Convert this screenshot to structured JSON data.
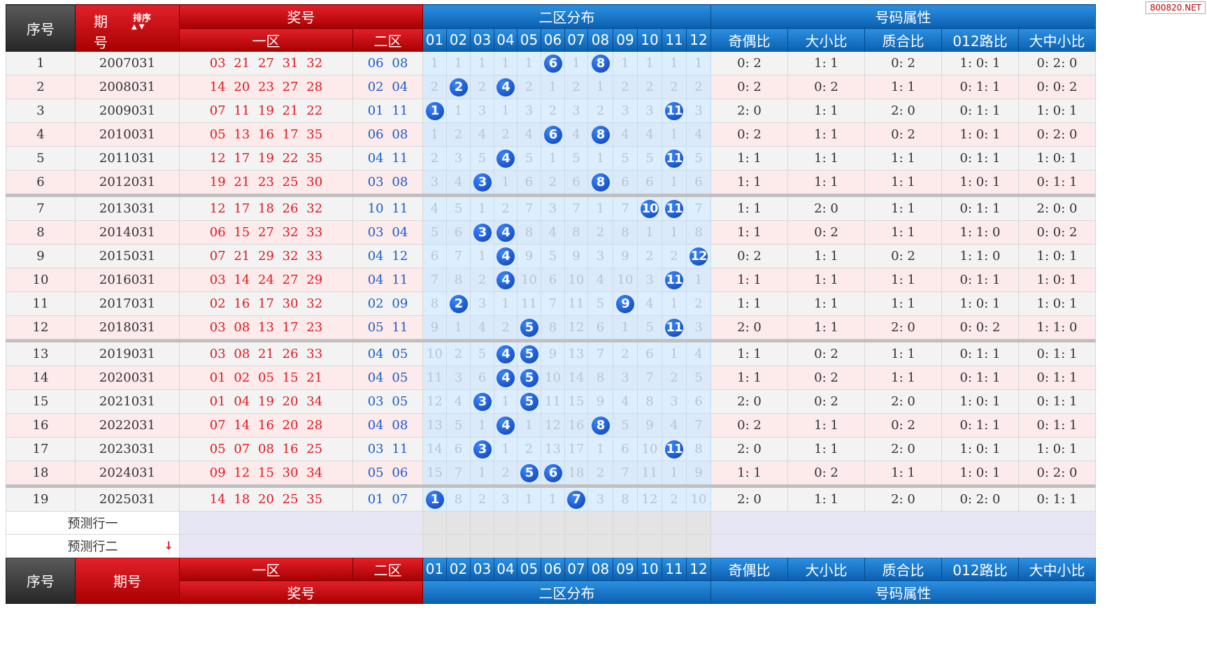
{
  "watermark": "800820.NET",
  "header": {
    "seq": "序号",
    "period_top": "期",
    "period_bottom": "号",
    "sort_label": "排序",
    "sort_arrows": "▲ ▼",
    "prize": "奖号",
    "zone1": "一区",
    "zone2": "二区",
    "distribution": "二区分布",
    "attrs_title": "号码属性",
    "numbers": [
      "01",
      "02",
      "03",
      "04",
      "05",
      "06",
      "07",
      "08",
      "09",
      "10",
      "11",
      "12"
    ],
    "attrs": [
      "奇偶比",
      "大小比",
      "质合比",
      "012路比",
      "大中小比"
    ]
  },
  "rows": [
    {
      "seq": "1",
      "period": "2007031",
      "z1": "03 21 27 31 32",
      "z2": "06 08",
      "dist": [
        "1",
        "1",
        "1",
        "1",
        "1",
        "6",
        "1",
        "8",
        "1",
        "1",
        "1",
        "1"
      ],
      "attrs": [
        "0: 2",
        "1: 1",
        "0: 2",
        "1: 0: 1",
        "0: 2: 0"
      ]
    },
    {
      "seq": "2",
      "period": "2008031",
      "z1": "14 20 23 27 28",
      "z2": "02 04",
      "dist": [
        "2",
        "2",
        "2",
        "4",
        "2",
        "1",
        "2",
        "1",
        "2",
        "2",
        "2",
        "2"
      ],
      "attrs": [
        "0: 2",
        "0: 2",
        "1: 1",
        "0: 1: 1",
        "0: 0: 2"
      ]
    },
    {
      "seq": "3",
      "period": "2009031",
      "z1": "07 11 19 21 22",
      "z2": "01 11",
      "dist": [
        "1",
        "1",
        "3",
        "1",
        "3",
        "2",
        "3",
        "2",
        "3",
        "3",
        "11",
        "3"
      ],
      "attrs": [
        "2: 0",
        "1: 1",
        "2: 0",
        "0: 1: 1",
        "1: 0: 1"
      ]
    },
    {
      "seq": "4",
      "period": "2010031",
      "z1": "05 13 16 17 35",
      "z2": "06 08",
      "dist": [
        "1",
        "2",
        "4",
        "2",
        "4",
        "6",
        "4",
        "8",
        "4",
        "4",
        "1",
        "4"
      ],
      "attrs": [
        "0: 2",
        "1: 1",
        "0: 2",
        "1: 0: 1",
        "0: 2: 0"
      ]
    },
    {
      "seq": "5",
      "period": "2011031",
      "z1": "12 17 19 22 35",
      "z2": "04 11",
      "dist": [
        "2",
        "3",
        "5",
        "4",
        "5",
        "1",
        "5",
        "1",
        "5",
        "5",
        "11",
        "5"
      ],
      "attrs": [
        "1: 1",
        "1: 1",
        "1: 1",
        "0: 1: 1",
        "1: 0: 1"
      ]
    },
    {
      "seq": "6",
      "period": "2012031",
      "z1": "19 21 23 25 30",
      "z2": "03 08",
      "dist": [
        "3",
        "4",
        "3",
        "1",
        "6",
        "2",
        "6",
        "8",
        "6",
        "6",
        "1",
        "6"
      ],
      "attrs": [
        "1: 1",
        "1: 1",
        "1: 1",
        "1: 0: 1",
        "0: 1: 1"
      ]
    },
    {
      "seq": "7",
      "period": "2013031",
      "z1": "12 17 18 26 32",
      "z2": "10 11",
      "dist": [
        "4",
        "5",
        "1",
        "2",
        "7",
        "3",
        "7",
        "1",
        "7",
        "10",
        "11",
        "7"
      ],
      "attrs": [
        "1: 1",
        "2: 0",
        "1: 1",
        "0: 1: 1",
        "2: 0: 0"
      ]
    },
    {
      "seq": "8",
      "period": "2014031",
      "z1": "06 15 27 32 33",
      "z2": "03 04",
      "dist": [
        "5",
        "6",
        "3",
        "4",
        "8",
        "4",
        "8",
        "2",
        "8",
        "1",
        "1",
        "8"
      ],
      "attrs": [
        "1: 1",
        "0: 2",
        "1: 1",
        "1: 1: 0",
        "0: 0: 2"
      ]
    },
    {
      "seq": "9",
      "period": "2015031",
      "z1": "07 21 29 32 33",
      "z2": "04 12",
      "dist": [
        "6",
        "7",
        "1",
        "4",
        "9",
        "5",
        "9",
        "3",
        "9",
        "2",
        "2",
        "12"
      ],
      "attrs": [
        "0: 2",
        "1: 1",
        "0: 2",
        "1: 1: 0",
        "1: 0: 1"
      ]
    },
    {
      "seq": "10",
      "period": "2016031",
      "z1": "03 14 24 27 29",
      "z2": "04 11",
      "dist": [
        "7",
        "8",
        "2",
        "4",
        "10",
        "6",
        "10",
        "4",
        "10",
        "3",
        "11",
        "1"
      ],
      "attrs": [
        "1: 1",
        "1: 1",
        "1: 1",
        "0: 1: 1",
        "1: 0: 1"
      ]
    },
    {
      "seq": "11",
      "period": "2017031",
      "z1": "02 16 17 30 32",
      "z2": "02 09",
      "dist": [
        "8",
        "2",
        "3",
        "1",
        "11",
        "7",
        "11",
        "5",
        "9",
        "4",
        "1",
        "2"
      ],
      "attrs": [
        "1: 1",
        "1: 1",
        "1: 1",
        "1: 0: 1",
        "1: 0: 1"
      ]
    },
    {
      "seq": "12",
      "period": "2018031",
      "z1": "03 08 13 17 23",
      "z2": "05 11",
      "dist": [
        "9",
        "1",
        "4",
        "2",
        "5",
        "8",
        "12",
        "6",
        "1",
        "5",
        "11",
        "3"
      ],
      "attrs": [
        "2: 0",
        "1: 1",
        "2: 0",
        "0: 0: 2",
        "1: 1: 0"
      ]
    },
    {
      "seq": "13",
      "period": "2019031",
      "z1": "03 08 21 26 33",
      "z2": "04 05",
      "dist": [
        "10",
        "2",
        "5",
        "4",
        "5",
        "9",
        "13",
        "7",
        "2",
        "6",
        "1",
        "4"
      ],
      "attrs": [
        "1: 1",
        "0: 2",
        "1: 1",
        "0: 1: 1",
        "0: 1: 1"
      ]
    },
    {
      "seq": "14",
      "period": "2020031",
      "z1": "01 02 05 15 21",
      "z2": "04 05",
      "dist": [
        "11",
        "3",
        "6",
        "4",
        "5",
        "10",
        "14",
        "8",
        "3",
        "7",
        "2",
        "5"
      ],
      "attrs": [
        "1: 1",
        "0: 2",
        "1: 1",
        "0: 1: 1",
        "0: 1: 1"
      ]
    },
    {
      "seq": "15",
      "period": "2021031",
      "z1": "01 04 19 20 34",
      "z2": "03 05",
      "dist": [
        "12",
        "4",
        "3",
        "1",
        "5",
        "11",
        "15",
        "9",
        "4",
        "8",
        "3",
        "6"
      ],
      "attrs": [
        "2: 0",
        "0: 2",
        "2: 0",
        "1: 0: 1",
        "0: 1: 1"
      ]
    },
    {
      "seq": "16",
      "period": "2022031",
      "z1": "07 14 16 20 28",
      "z2": "04 08",
      "dist": [
        "13",
        "5",
        "1",
        "4",
        "1",
        "12",
        "16",
        "8",
        "5",
        "9",
        "4",
        "7"
      ],
      "attrs": [
        "0: 2",
        "1: 1",
        "0: 2",
        "0: 1: 1",
        "0: 1: 1"
      ]
    },
    {
      "seq": "17",
      "period": "2023031",
      "z1": "05 07 08 16 25",
      "z2": "03 11",
      "dist": [
        "14",
        "6",
        "3",
        "1",
        "2",
        "13",
        "17",
        "1",
        "6",
        "10",
        "11",
        "8"
      ],
      "attrs": [
        "2: 0",
        "1: 1",
        "2: 0",
        "1: 0: 1",
        "1: 0: 1"
      ]
    },
    {
      "seq": "18",
      "period": "2024031",
      "z1": "09 12 15 30 34",
      "z2": "05 06",
      "dist": [
        "15",
        "7",
        "1",
        "2",
        "5",
        "6",
        "18",
        "2",
        "7",
        "11",
        "1",
        "9"
      ],
      "attrs": [
        "1: 1",
        "0: 2",
        "1: 1",
        "1: 0: 1",
        "0: 2: 0"
      ]
    },
    {
      "seq": "19",
      "period": "2025031",
      "z1": "14 18 20 25 35",
      "z2": "01 07",
      "dist": [
        "1",
        "8",
        "2",
        "3",
        "1",
        "1",
        "7",
        "3",
        "8",
        "12",
        "2",
        "10"
      ],
      "attrs": [
        "2: 0",
        "1: 1",
        "2: 0",
        "0: 2: 0",
        "0: 1: 1"
      ]
    }
  ],
  "predict": {
    "row1": "预测行一",
    "row2": "预测行二",
    "arrow": "↓"
  },
  "colors": {
    "red": "#e0191e",
    "blue": "#1a5ccc",
    "ball": "#0a3fb0",
    "dark": "#333333"
  }
}
